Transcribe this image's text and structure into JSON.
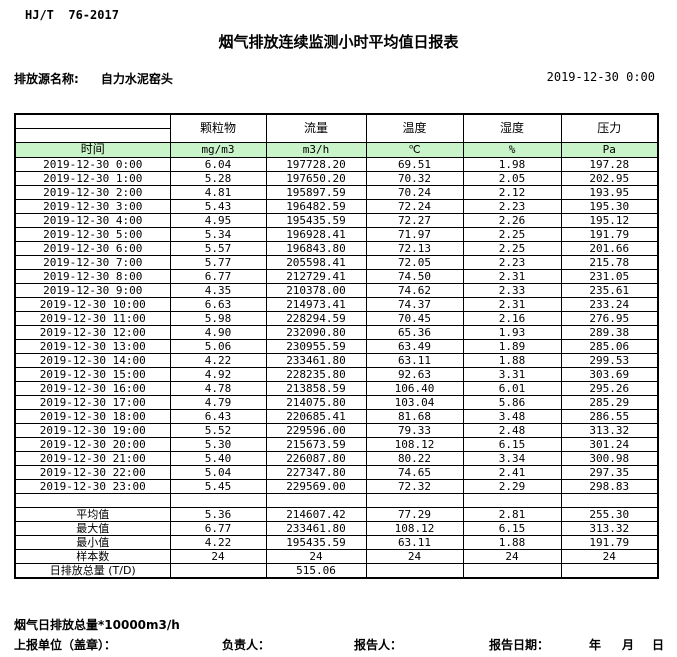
{
  "page": {
    "standard": "HJ/T  76-2017",
    "title": "烟气排放连续监测小时平均值日报表",
    "source_label": "排放源名称:",
    "source_name": "自力水泥窑头",
    "datetime": "2019-12-30 0:00"
  },
  "table": {
    "time_header": "时间",
    "columns": [
      "颗粒物",
      "流量",
      "温度",
      "湿度",
      "压力"
    ],
    "units": [
      "mg/m3",
      "m3/h",
      "℃",
      "%",
      "Pa"
    ],
    "rows": [
      [
        "2019-12-30 0:00",
        "6.04",
        "197728.20",
        "69.51",
        "1.98",
        "197.28"
      ],
      [
        "2019-12-30 1:00",
        "5.28",
        "197650.20",
        "70.32",
        "2.05",
        "202.95"
      ],
      [
        "2019-12-30 2:00",
        "4.81",
        "195897.59",
        "70.24",
        "2.12",
        "193.95"
      ],
      [
        "2019-12-30 3:00",
        "5.43",
        "196482.59",
        "72.24",
        "2.23",
        "195.30"
      ],
      [
        "2019-12-30 4:00",
        "4.95",
        "195435.59",
        "72.27",
        "2.26",
        "195.12"
      ],
      [
        "2019-12-30 5:00",
        "5.34",
        "196928.41",
        "71.97",
        "2.25",
        "191.79"
      ],
      [
        "2019-12-30 6:00",
        "5.57",
        "196843.80",
        "72.13",
        "2.25",
        "201.66"
      ],
      [
        "2019-12-30 7:00",
        "5.77",
        "205598.41",
        "72.05",
        "2.23",
        "215.78"
      ],
      [
        "2019-12-30 8:00",
        "6.77",
        "212729.41",
        "74.50",
        "2.31",
        "231.05"
      ],
      [
        "2019-12-30 9:00",
        "4.35",
        "210378.00",
        "74.62",
        "2.33",
        "235.61"
      ],
      [
        "2019-12-30 10:00",
        "6.63",
        "214973.41",
        "74.37",
        "2.31",
        "233.24"
      ],
      [
        "2019-12-30 11:00",
        "5.98",
        "228294.59",
        "70.45",
        "2.16",
        "276.95"
      ],
      [
        "2019-12-30 12:00",
        "4.90",
        "232090.80",
        "65.36",
        "1.93",
        "289.38"
      ],
      [
        "2019-12-30 13:00",
        "5.06",
        "230955.59",
        "63.49",
        "1.89",
        "285.06"
      ],
      [
        "2019-12-30 14:00",
        "4.22",
        "233461.80",
        "63.11",
        "1.88",
        "299.53"
      ],
      [
        "2019-12-30 15:00",
        "4.92",
        "228235.80",
        "92.63",
        "3.31",
        "303.69"
      ],
      [
        "2019-12-30 16:00",
        "4.78",
        "213858.59",
        "106.40",
        "6.01",
        "295.26"
      ],
      [
        "2019-12-30 17:00",
        "4.79",
        "214075.80",
        "103.04",
        "5.86",
        "285.29"
      ],
      [
        "2019-12-30 18:00",
        "6.43",
        "220685.41",
        "81.68",
        "3.48",
        "286.55"
      ],
      [
        "2019-12-30 19:00",
        "5.52",
        "229596.00",
        "79.33",
        "2.48",
        "313.32"
      ],
      [
        "2019-12-30 20:00",
        "5.30",
        "215673.59",
        "108.12",
        "6.15",
        "301.24"
      ],
      [
        "2019-12-30 21:00",
        "5.40",
        "226087.80",
        "80.22",
        "3.34",
        "300.98"
      ],
      [
        "2019-12-30 22:00",
        "5.04",
        "227347.80",
        "74.65",
        "2.41",
        "297.35"
      ],
      [
        "2019-12-30 23:00",
        "5.45",
        "229569.00",
        "72.32",
        "2.29",
        "298.83"
      ]
    ],
    "summary": [
      {
        "label": "平均值",
        "values": [
          "5.36",
          "214607.42",
          "77.29",
          "2.81",
          "255.30"
        ]
      },
      {
        "label": "最大值",
        "values": [
          "6.77",
          "233461.80",
          "108.12",
          "6.15",
          "313.32"
        ]
      },
      {
        "label": "最小值",
        "values": [
          "4.22",
          "195435.59",
          "63.11",
          "1.88",
          "191.79"
        ]
      },
      {
        "label": "样本数",
        "values": [
          "24",
          "24",
          "24",
          "24",
          "24"
        ]
      },
      {
        "label": "日排放总量 (T/D)",
        "values": [
          "",
          "515.06",
          "",
          "",
          ""
        ]
      }
    ]
  },
  "footer": {
    "note": "烟气日排放总量*10000m3/h",
    "report_unit_label": "上报单位（盖章）：",
    "responsible_label": "负责人：",
    "reporter_label": "报告人：",
    "report_date_label": "报告日期：",
    "year_label": "年",
    "month_label": "月",
    "day_label": "日"
  },
  "colors": {
    "header_row_green": "#c9f3c9",
    "border": "#000000",
    "text": "#000000",
    "background": "#ffffff"
  }
}
